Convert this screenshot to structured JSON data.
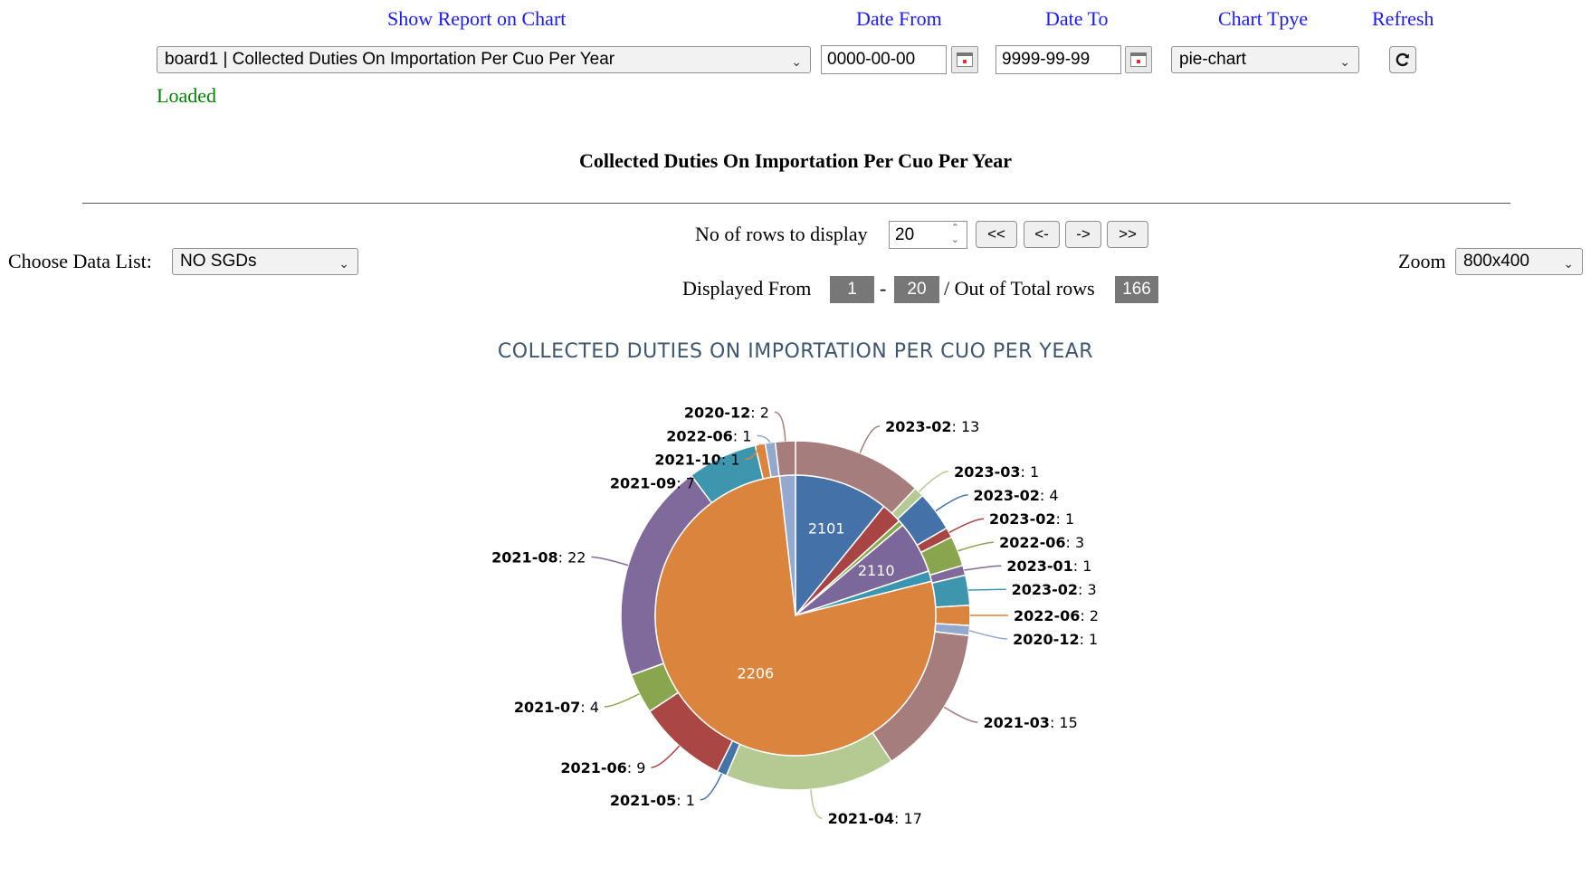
{
  "header": {
    "show_report_label": "Show Report on Chart",
    "date_from_label": "Date From",
    "date_to_label": "Date To",
    "chart_type_label": "Chart Tpye",
    "refresh_label": "Refresh",
    "report_select_value": "board1 | Collected Duties On Importation Per Cuo Per Year",
    "date_from_value": "0000-00-00",
    "date_to_value": "9999-99-99",
    "chart_type_value": "pie-chart",
    "status_text": "Loaded",
    "status_color": "#008000",
    "link_color": "#1a1aff"
  },
  "report_title": "Collected Duties On Importation Per Cuo Per Year",
  "controls": {
    "rows_label": "No of rows to display",
    "rows_value": "20",
    "first_button": "<<",
    "prev_button": "<-",
    "next_button": "->",
    "last_button": ">>",
    "choose_data_label": "Choose Data List:",
    "data_list_value": "NO SGDs",
    "zoom_label": "Zoom",
    "zoom_value": "800x400",
    "displayed_from_label": "Displayed From",
    "from_value": "1",
    "dash": "-",
    "to_value": "20",
    "total_label": "/ Out of Total rows",
    "total_value": "166"
  },
  "chart_data": {
    "type": "pie",
    "title": "COLLECTED DUTIES ON IMPORTATION PER CUO PER YEAR",
    "inner": [
      {
        "name": "2101",
        "value": 18,
        "color": "#4472a8"
      },
      {
        "name": "",
        "value": 4,
        "color": "#a84444"
      },
      {
        "name": "",
        "value": 1,
        "color": "#86a84a"
      },
      {
        "name": "2110",
        "value": 10,
        "color": "#7b6799"
      },
      {
        "name": "",
        "value": 2,
        "color": "#3a95b0"
      },
      {
        "name": "2206",
        "value": 128,
        "color": "#db843d"
      },
      {
        "name": "",
        "value": 3,
        "color": "#93a9d0"
      }
    ],
    "outer": [
      {
        "name": "2023-02",
        "value": 13,
        "color": "#a47d7c"
      },
      {
        "name": "2023-03",
        "value": 1,
        "color": "#b5ca92"
      },
      {
        "name": "2023-02",
        "value": 4,
        "color": "#4472a8"
      },
      {
        "name": "2023-02",
        "value": 1,
        "color": "#a84444"
      },
      {
        "name": "2022-06",
        "value": 3,
        "color": "#89a54e"
      },
      {
        "name": "2023-01",
        "value": 1,
        "color": "#80699b"
      },
      {
        "name": "2023-02",
        "value": 3,
        "color": "#3d96ae"
      },
      {
        "name": "2022-06",
        "value": 2,
        "color": "#db843d"
      },
      {
        "name": "2020-12",
        "value": 1,
        "color": "#92a8cd"
      },
      {
        "name": "2021-03",
        "value": 15,
        "color": "#a47d7c"
      },
      {
        "name": "2021-04",
        "value": 17,
        "color": "#b5ca92"
      },
      {
        "name": "2021-05",
        "value": 1,
        "color": "#4572a7"
      },
      {
        "name": "2021-06",
        "value": 9,
        "color": "#aa4643"
      },
      {
        "name": "2021-07",
        "value": 4,
        "color": "#89a54e"
      },
      {
        "name": "2021-08",
        "value": 22,
        "color": "#80699b"
      },
      {
        "name": "2021-09",
        "value": 7,
        "color": "#3d96ae"
      },
      {
        "name": "2021-10",
        "value": 1,
        "color": "#db843d"
      },
      {
        "name": "2022-06",
        "value": 1,
        "color": "#92a8cd"
      },
      {
        "name": "2020-12",
        "value": 2,
        "color": "#a47d7c"
      }
    ],
    "legend": "none",
    "label_separator": ": "
  }
}
